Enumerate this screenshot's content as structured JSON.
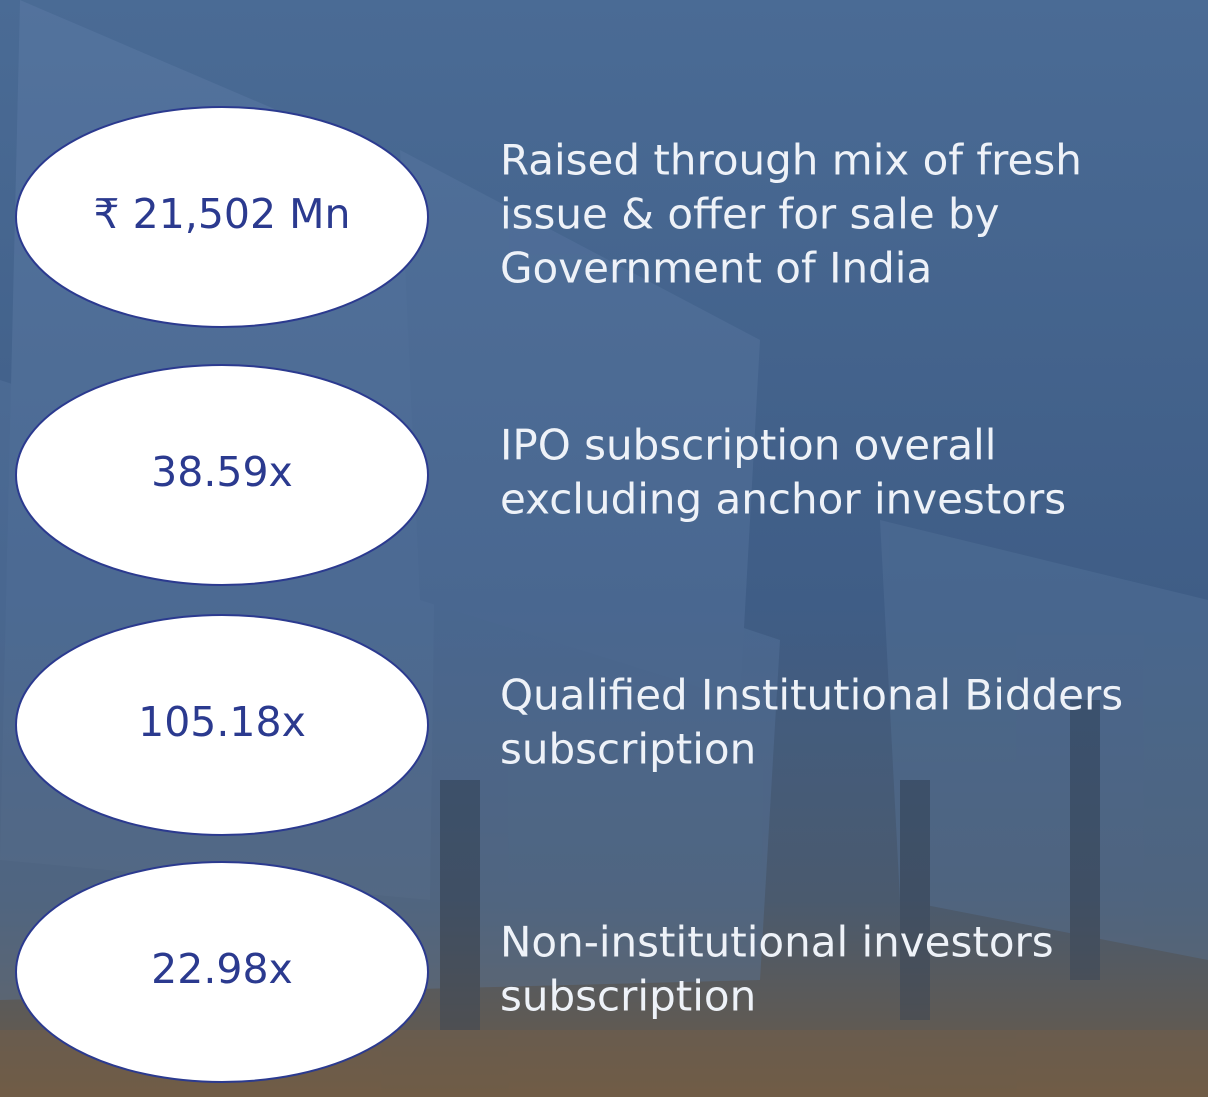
{
  "items": [
    {
      "value": "₹ 21,502 Mn",
      "lines": [
        "Raised through mix of fresh",
        "issue & offer for sale by",
        "Government of India"
      ]
    },
    {
      "value": "38.59x",
      "lines": [
        "IPO subscription overall",
        "excluding anchor investors"
      ]
    },
    {
      "value": "105.18x",
      "lines": [
        "Qualified Institutional Bidders",
        "subscription"
      ]
    },
    {
      "value": "22.98x",
      "lines": [
        "Non-institutional investors",
        "subscription"
      ]
    }
  ]
}
